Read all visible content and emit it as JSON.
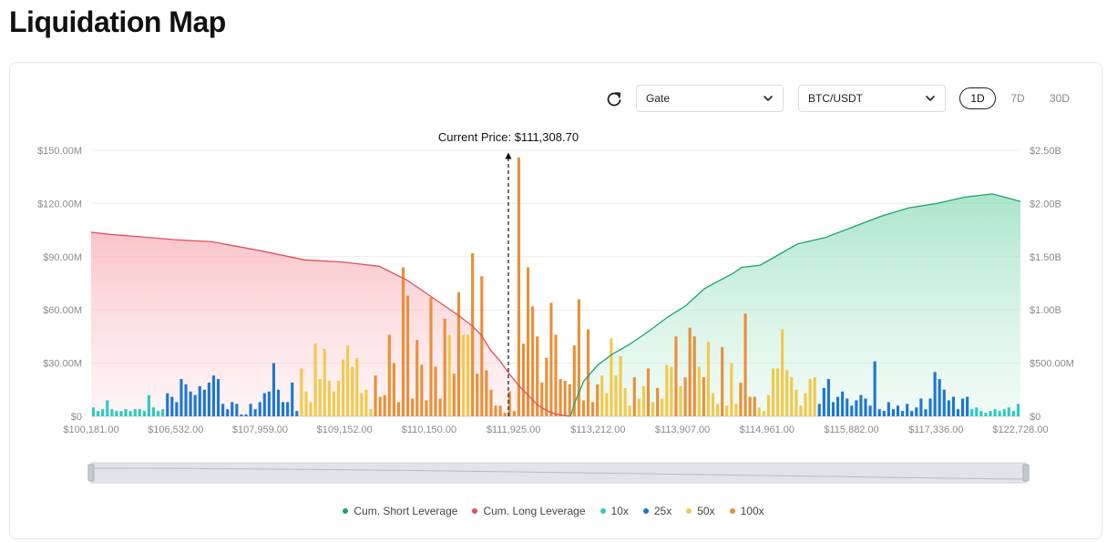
{
  "page": {
    "title": "Liquidation Map"
  },
  "controls": {
    "exchange": "Gate",
    "pair": "BTC/USDT",
    "ranges": [
      {
        "label": "1D",
        "active": true
      },
      {
        "label": "7D",
        "active": false
      },
      {
        "label": "30D",
        "active": false
      }
    ]
  },
  "icons": {
    "refresh": "refresh-icon",
    "chevron": "chevron-down-icon"
  },
  "colors": {
    "short": "#1aa36b",
    "long": "#e0505a",
    "lev10x": "#2fc9c2",
    "lev25x": "#1f77d0",
    "lev50x": "#f2c94c",
    "lev100x": "#e8903a"
  },
  "chart_data": {
    "type": "bar",
    "current_price_label": "Current Price: $111,308.70",
    "current_price": 111308.7,
    "x_tick_labels": [
      "$100,181.00",
      "$106,532.00",
      "$107,959.00",
      "$109,152.00",
      "$110,150.00",
      "$111,925.00",
      "$113,212.00",
      "$113,907.00",
      "$114,961.00",
      "$115,882.00",
      "$117,336.00",
      "$122,728.00"
    ],
    "y_left_ticks": [
      "$0",
      "$30.00M",
      "$60.00M",
      "$90.00M",
      "$120.00M",
      "$150.00M"
    ],
    "y_left_range": [
      0,
      150
    ],
    "y_right_ticks": [
      "$0",
      "$500.00M",
      "$1.00B",
      "$1.50B",
      "$2.00B",
      "$2.50B"
    ],
    "y_right_range": [
      0,
      2500
    ],
    "legend_position": "bottom",
    "grid": true,
    "legend": [
      {
        "name": "Cum. Short Leverage",
        "color": "#1aa36b"
      },
      {
        "name": "Cum. Long Leverage",
        "color": "#e0505a"
      },
      {
        "name": "10x",
        "color": "#2fc9c2"
      },
      {
        "name": "25x",
        "color": "#1f77d0"
      },
      {
        "name": "50x",
        "color": "#f2c94c"
      },
      {
        "name": "100x",
        "color": "#e8903a"
      }
    ],
    "bars_unit": "$M",
    "bars": [
      [
        5,
        "10x"
      ],
      [
        3,
        "10x"
      ],
      [
        4,
        "10x"
      ],
      [
        9,
        "10x"
      ],
      [
        4,
        "10x"
      ],
      [
        3,
        "10x"
      ],
      [
        3,
        "10x"
      ],
      [
        4,
        "10x"
      ],
      [
        3,
        "10x"
      ],
      [
        4,
        "10x"
      ],
      [
        4,
        "10x"
      ],
      [
        3,
        "10x"
      ],
      [
        12,
        "10x"
      ],
      [
        5,
        "10x"
      ],
      [
        3,
        "10x"
      ],
      [
        4,
        "10x"
      ],
      [
        13,
        "25x"
      ],
      [
        11,
        "25x"
      ],
      [
        8,
        "25x"
      ],
      [
        21,
        "25x"
      ],
      [
        18,
        "25x"
      ],
      [
        14,
        "25x"
      ],
      [
        12,
        "25x"
      ],
      [
        17,
        "25x"
      ],
      [
        15,
        "25x"
      ],
      [
        19,
        "25x"
      ],
      [
        23,
        "25x"
      ],
      [
        21,
        "25x"
      ],
      [
        7,
        "25x"
      ],
      [
        4,
        "25x"
      ],
      [
        8,
        "25x"
      ],
      [
        7,
        "25x"
      ],
      [
        1,
        "25x"
      ],
      [
        1,
        "25x"
      ],
      [
        7,
        "25x"
      ],
      [
        4,
        "25x"
      ],
      [
        8,
        "25x"
      ],
      [
        13,
        "25x"
      ],
      [
        14,
        "25x"
      ],
      [
        30,
        "25x"
      ],
      [
        15,
        "25x"
      ],
      [
        8,
        "25x"
      ],
      [
        8,
        "25x"
      ],
      [
        19,
        "25x"
      ],
      [
        3,
        "25x"
      ],
      [
        27,
        "50x"
      ],
      [
        14,
        "50x"
      ],
      [
        8,
        "50x"
      ],
      [
        41,
        "50x"
      ],
      [
        21,
        "50x"
      ],
      [
        38,
        "50x"
      ],
      [
        20,
        "50x"
      ],
      [
        14,
        "50x"
      ],
      [
        20,
        "50x"
      ],
      [
        32,
        "50x"
      ],
      [
        40,
        "50x"
      ],
      [
        28,
        "50x"
      ],
      [
        33,
        "50x"
      ],
      [
        13,
        "50x"
      ],
      [
        15,
        "50x"
      ],
      [
        4,
        "50x"
      ],
      [
        23,
        "100x"
      ],
      [
        11,
        "100x"
      ],
      [
        12,
        "100x"
      ],
      [
        46,
        "100x"
      ],
      [
        30,
        "100x"
      ],
      [
        8,
        "100x"
      ],
      [
        84,
        "100x"
      ],
      [
        68,
        "100x"
      ],
      [
        10,
        "100x"
      ],
      [
        43,
        "100x"
      ],
      [
        29,
        "100x"
      ],
      [
        9,
        "100x"
      ],
      [
        67,
        "100x"
      ],
      [
        28,
        "100x"
      ],
      [
        10,
        "100x"
      ],
      [
        55,
        "100x"
      ],
      [
        46,
        "50x"
      ],
      [
        24,
        "100x"
      ],
      [
        70,
        "100x"
      ],
      [
        46,
        "50x"
      ],
      [
        46,
        "50x"
      ],
      [
        92,
        "100x"
      ],
      [
        24,
        "100x"
      ],
      [
        79,
        "100x"
      ],
      [
        26,
        "100x"
      ],
      [
        15,
        "100x"
      ],
      [
        6,
        "100x"
      ],
      [
        6,
        "100x"
      ],
      [
        2,
        "100x"
      ],
      [
        14,
        "100x"
      ],
      [
        3,
        "100x"
      ],
      [
        146,
        "100x"
      ],
      [
        41,
        "100x"
      ],
      [
        84,
        "100x"
      ],
      [
        62,
        "100x"
      ],
      [
        45,
        "100x"
      ],
      [
        19,
        "100x"
      ],
      [
        33,
        "100x"
      ],
      [
        64,
        "100x"
      ],
      [
        46,
        "100x"
      ],
      [
        21,
        "100x"
      ],
      [
        20,
        "100x"
      ],
      [
        18,
        "100x"
      ],
      [
        40,
        "100x"
      ],
      [
        66,
        "100x"
      ],
      [
        9,
        "100x"
      ],
      [
        49,
        "100x"
      ],
      [
        8,
        "100x"
      ],
      [
        18,
        "100x"
      ],
      [
        23,
        "50x"
      ],
      [
        13,
        "50x"
      ],
      [
        44,
        "50x"
      ],
      [
        23,
        "50x"
      ],
      [
        34,
        "50x"
      ],
      [
        16,
        "50x"
      ],
      [
        6,
        "50x"
      ],
      [
        22,
        "100x"
      ],
      [
        10,
        "50x"
      ],
      [
        17,
        "50x"
      ],
      [
        27,
        "100x"
      ],
      [
        8,
        "50x"
      ],
      [
        16,
        "100x"
      ],
      [
        10,
        "50x"
      ],
      [
        29,
        "50x"
      ],
      [
        28,
        "50x"
      ],
      [
        45,
        "100x"
      ],
      [
        17,
        "50x"
      ],
      [
        22,
        "100x"
      ],
      [
        50,
        "100x"
      ],
      [
        45,
        "100x"
      ],
      [
        28,
        "50x"
      ],
      [
        22,
        "100x"
      ],
      [
        42,
        "50x"
      ],
      [
        13,
        "50x"
      ],
      [
        7,
        "50x"
      ],
      [
        39,
        "100x"
      ],
      [
        6,
        "50x"
      ],
      [
        30,
        "50x"
      ],
      [
        7,
        "50x"
      ],
      [
        19,
        "100x"
      ],
      [
        58,
        "100x"
      ],
      [
        11,
        "100x"
      ],
      [
        11,
        "100x"
      ],
      [
        5,
        "50x"
      ],
      [
        3,
        "50x"
      ],
      [
        12,
        "50x"
      ],
      [
        27,
        "50x"
      ],
      [
        27,
        "50x"
      ],
      [
        49,
        "50x"
      ],
      [
        26,
        "50x"
      ],
      [
        22,
        "50x"
      ],
      [
        15,
        "50x"
      ],
      [
        6,
        "50x"
      ],
      [
        13,
        "50x"
      ],
      [
        21,
        "50x"
      ],
      [
        22,
        "50x"
      ],
      [
        7,
        "25x"
      ],
      [
        16,
        "25x"
      ],
      [
        21,
        "25x"
      ],
      [
        8,
        "25x"
      ],
      [
        11,
        "25x"
      ],
      [
        14,
        "25x"
      ],
      [
        10,
        "25x"
      ],
      [
        6,
        "25x"
      ],
      [
        9,
        "25x"
      ],
      [
        12,
        "25x"
      ],
      [
        10,
        "25x"
      ],
      [
        6,
        "25x"
      ],
      [
        31,
        "25x"
      ],
      [
        4,
        "25x"
      ],
      [
        3,
        "25x"
      ],
      [
        8,
        "25x"
      ],
      [
        4,
        "25x"
      ],
      [
        6,
        "25x"
      ],
      [
        3,
        "25x"
      ],
      [
        7,
        "25x"
      ],
      [
        3,
        "25x"
      ],
      [
        5,
        "25x"
      ],
      [
        10,
        "25x"
      ],
      [
        4,
        "25x"
      ],
      [
        10,
        "25x"
      ],
      [
        25,
        "25x"
      ],
      [
        21,
        "25x"
      ],
      [
        15,
        "25x"
      ],
      [
        9,
        "25x"
      ],
      [
        11,
        "25x"
      ],
      [
        4,
        "25x"
      ],
      [
        10,
        "25x"
      ],
      [
        11,
        "25x"
      ],
      [
        4,
        "10x"
      ],
      [
        5,
        "10x"
      ],
      [
        3,
        "10x"
      ],
      [
        2,
        "10x"
      ],
      [
        3,
        "10x"
      ],
      [
        4,
        "10x"
      ],
      [
        3,
        "10x"
      ],
      [
        4,
        "10x"
      ],
      [
        5,
        "10x"
      ],
      [
        3,
        "10x"
      ],
      [
        7,
        "10x"
      ]
    ],
    "cum_long_unit": "$M",
    "cum_long": [
      [
        0,
        1730
      ],
      [
        0.02,
        1710
      ],
      [
        0.05,
        1690
      ],
      [
        0.09,
        1660
      ],
      [
        0.13,
        1640
      ],
      [
        0.18,
        1560
      ],
      [
        0.23,
        1470
      ],
      [
        0.27,
        1450
      ],
      [
        0.31,
        1410
      ],
      [
        0.34,
        1280
      ],
      [
        0.37,
        1100
      ],
      [
        0.395,
        950
      ],
      [
        0.41,
        850
      ],
      [
        0.42,
        760
      ],
      [
        0.43,
        620
      ],
      [
        0.44,
        520
      ],
      [
        0.45,
        400
      ],
      [
        0.46,
        290
      ],
      [
        0.47,
        200
      ],
      [
        0.48,
        110
      ],
      [
        0.49,
        55
      ],
      [
        0.5,
        20
      ],
      [
        0.51,
        8
      ],
      [
        0.515,
        0
      ]
    ],
    "cum_short_unit": "$M",
    "cum_short": [
      [
        0.516,
        0
      ],
      [
        0.52,
        120
      ],
      [
        0.53,
        330
      ],
      [
        0.545,
        480
      ],
      [
        0.56,
        580
      ],
      [
        0.58,
        680
      ],
      [
        0.6,
        800
      ],
      [
        0.62,
        930
      ],
      [
        0.64,
        1040
      ],
      [
        0.66,
        1200
      ],
      [
        0.69,
        1340
      ],
      [
        0.7,
        1400
      ],
      [
        0.72,
        1420
      ],
      [
        0.74,
        1520
      ],
      [
        0.76,
        1620
      ],
      [
        0.79,
        1680
      ],
      [
        0.82,
        1780
      ],
      [
        0.85,
        1880
      ],
      [
        0.88,
        1960
      ],
      [
        0.91,
        2000
      ],
      [
        0.94,
        2060
      ],
      [
        0.97,
        2090
      ],
      [
        1,
        2020
      ]
    ]
  }
}
